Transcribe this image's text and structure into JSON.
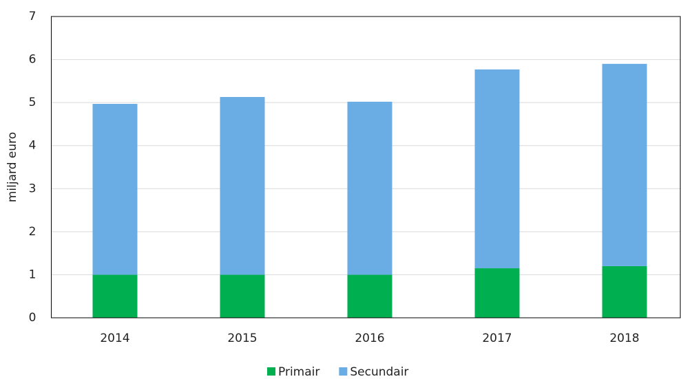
{
  "chart_data": {
    "type": "stacked_bar",
    "ylabel": "miljard euro",
    "categories": [
      "2014",
      "2015",
      "2016",
      "2017",
      "2018"
    ],
    "series": [
      {
        "name": "Primair",
        "color": "#00b050",
        "values": [
          1.0,
          1.0,
          1.0,
          1.15,
          1.2
        ]
      },
      {
        "name": "Secundair",
        "color": "#6aade4",
        "values": [
          3.97,
          4.13,
          4.02,
          4.62,
          4.7
        ]
      }
    ],
    "ylim": [
      0,
      7
    ],
    "yticks": [
      0,
      1,
      2,
      3,
      4,
      5,
      6,
      7
    ],
    "grid": true,
    "legend": "bottom"
  }
}
